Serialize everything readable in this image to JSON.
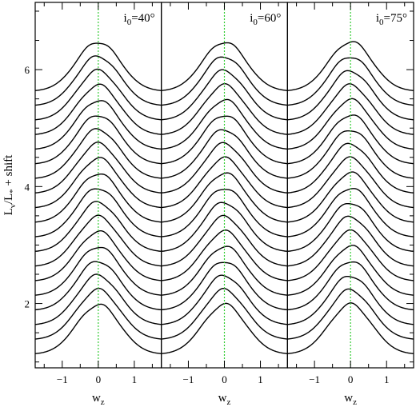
{
  "figure": {
    "ylabel": "Lν/L* + shift",
    "ylabel_parts": {
      "base": "L",
      "sub1": "ν",
      "slash": "/L",
      "sub2": "*",
      "tail": " + shift"
    },
    "yticks": [
      "2",
      "4",
      "6"
    ],
    "ytick_values": [
      2,
      4,
      6
    ],
    "xlabel_base": "w",
    "xlabel_sub": "z"
  },
  "chart_data": {
    "type": "line",
    "x_range": [
      -1.75,
      1.75
    ],
    "y_range": [
      0.9,
      7.15
    ],
    "xticks": [
      -1,
      0,
      1
    ],
    "xtick_labels": [
      "−1",
      "0",
      "1"
    ],
    "reference_line": {
      "x": 0,
      "style": "dotted",
      "color": "#33cc33"
    },
    "curve_count": 19,
    "shift_step": 0.25,
    "base_peak": 1.98,
    "peak_height": 0.85,
    "gaussian_width": 0.6,
    "line_color": "#000000",
    "panels": [
      {
        "title_base": "i",
        "title_sub": "0",
        "title_value": "=40°"
      },
      {
        "title_base": "i",
        "title_sub": "0",
        "title_value": "=60°"
      },
      {
        "title_base": "i",
        "title_sub": "0",
        "title_value": "=75°"
      }
    ]
  }
}
